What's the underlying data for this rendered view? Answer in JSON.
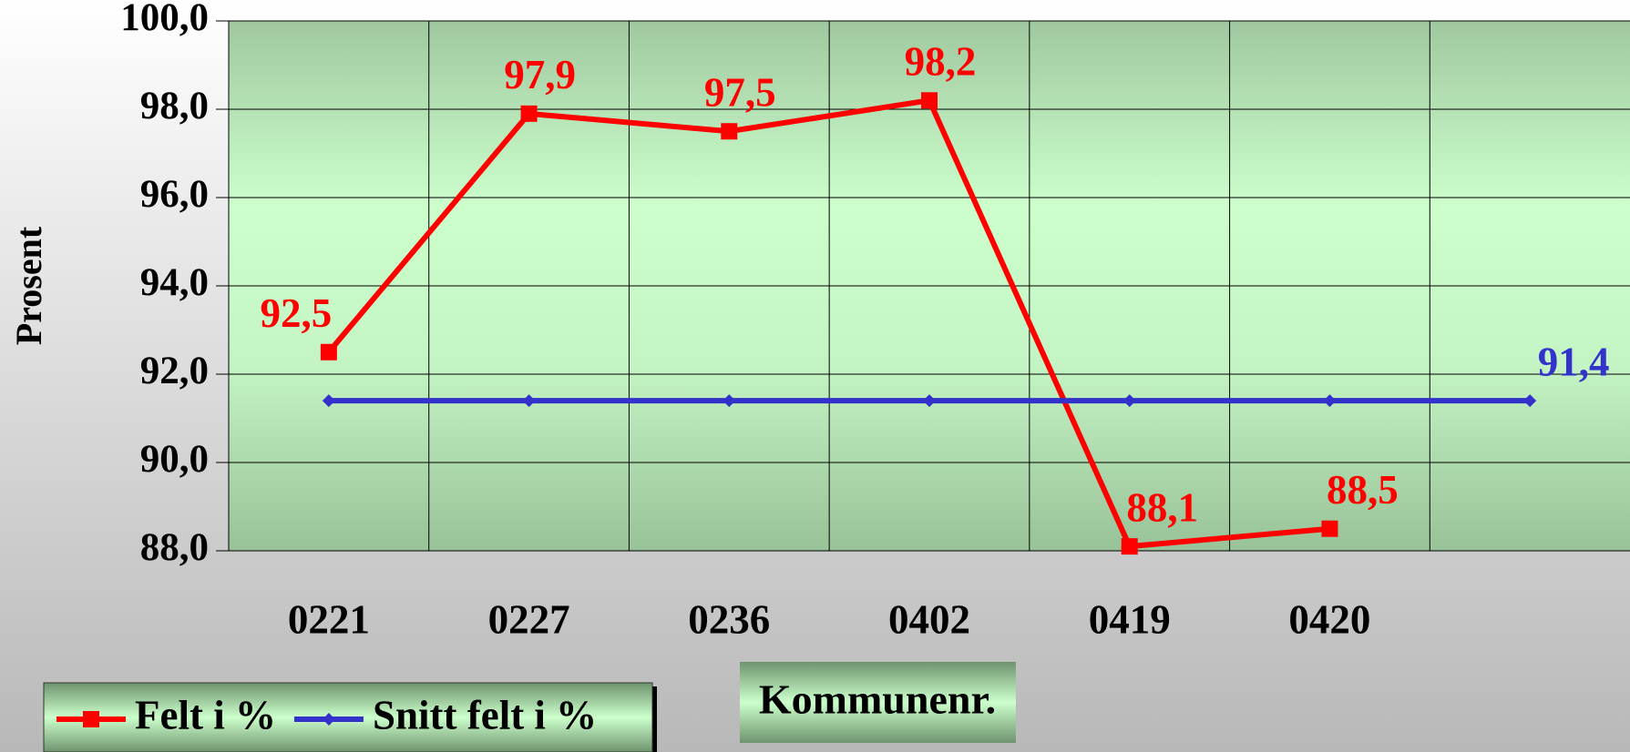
{
  "chart_data": {
    "type": "line",
    "ylabel": "Prosent",
    "xlabel": "Kommunenr.",
    "categories": [
      "0221",
      "0227",
      "0236",
      "0402",
      "0419",
      "0420",
      null
    ],
    "series": [
      {
        "name": "Felt i %",
        "color": "#ff0000",
        "marker": "square",
        "values": [
          92.5,
          97.9,
          97.5,
          98.2,
          88.1,
          88.5,
          null
        ],
        "value_labels": [
          "92,5",
          "97,9",
          "97,5",
          "98,2",
          "88,1",
          "88,5",
          null
        ]
      },
      {
        "name": "Snitt felt i %",
        "color": "#3333cc",
        "marker": "diamond",
        "values": [
          91.4,
          91.4,
          91.4,
          91.4,
          91.4,
          91.4,
          91.4
        ],
        "value_labels": [
          null,
          null,
          null,
          null,
          null,
          null,
          "91,4"
        ]
      }
    ],
    "ylim": [
      88,
      100
    ],
    "yticks": [
      {
        "value": 88,
        "label": "88,0"
      },
      {
        "value": 90,
        "label": "90,0"
      },
      {
        "value": 92,
        "label": "92,0"
      },
      {
        "value": 94,
        "label": "94,0"
      },
      {
        "value": 96,
        "label": "96,0"
      },
      {
        "value": 98,
        "label": "98,0"
      },
      {
        "value": 100,
        "label": "100,0"
      }
    ],
    "grid": true,
    "legend": "bottom-left"
  }
}
